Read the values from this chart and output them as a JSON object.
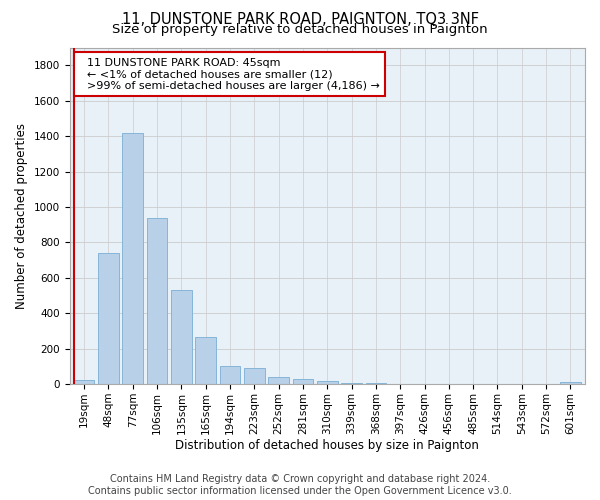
{
  "title": "11, DUNSTONE PARK ROAD, PAIGNTON, TQ3 3NF",
  "subtitle": "Size of property relative to detached houses in Paignton",
  "xlabel": "Distribution of detached houses by size in Paignton",
  "ylabel": "Number of detached properties",
  "footer_line1": "Contains HM Land Registry data © Crown copyright and database right 2024.",
  "footer_line2": "Contains public sector information licensed under the Open Government Licence v3.0.",
  "bar_labels": [
    "19sqm",
    "48sqm",
    "77sqm",
    "106sqm",
    "135sqm",
    "165sqm",
    "194sqm",
    "223sqm",
    "252sqm",
    "281sqm",
    "310sqm",
    "339sqm",
    "368sqm",
    "397sqm",
    "426sqm",
    "456sqm",
    "485sqm",
    "514sqm",
    "543sqm",
    "572sqm",
    "601sqm"
  ],
  "bar_values": [
    22,
    740,
    1420,
    940,
    530,
    265,
    105,
    93,
    42,
    28,
    20,
    8,
    5,
    3,
    2,
    2,
    1,
    1,
    1,
    1,
    15
  ],
  "bar_color": "#b8d0e8",
  "bar_edgecolor": "#7aafd4",
  "annotation_line1": "  11 DUNSTONE PARK ROAD: 45sqm",
  "annotation_line2": "  ← <1% of detached houses are smaller (12)",
  "annotation_line3": "  >99% of semi-detached houses are larger (4,186) →",
  "annotation_box_facecolor": "#ffffff",
  "annotation_box_edgecolor": "#cc0000",
  "marker_line_color": "#cc0000",
  "ylim": [
    0,
    1900
  ],
  "yticks": [
    0,
    200,
    400,
    600,
    800,
    1000,
    1200,
    1400,
    1600,
    1800
  ],
  "axes_facecolor": "#e8f0f8",
  "fig_facecolor": "#ffffff",
  "grid_color": "#cccccc",
  "title_fontsize": 10.5,
  "subtitle_fontsize": 9.5,
  "ylabel_fontsize": 8.5,
  "xlabel_fontsize": 8.5,
  "tick_fontsize": 7.5,
  "annot_fontsize": 8,
  "footer_fontsize": 7
}
